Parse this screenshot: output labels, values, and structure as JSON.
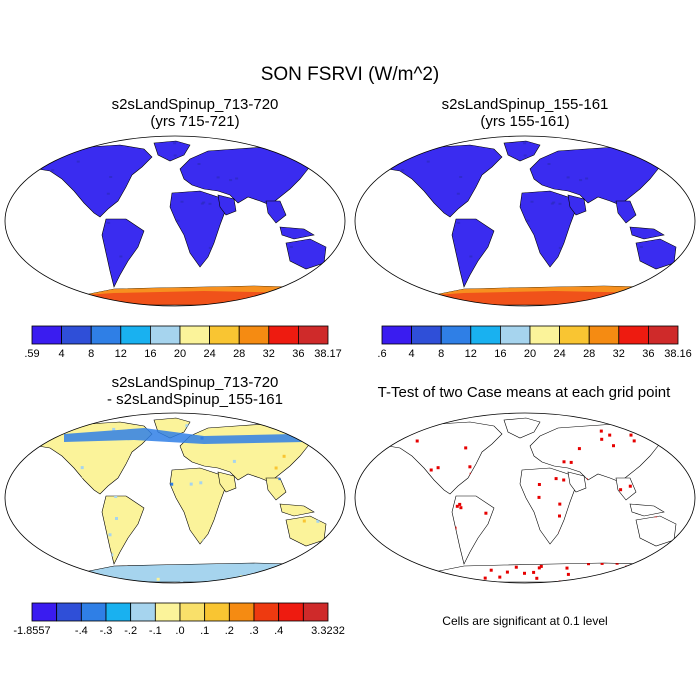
{
  "figure": {
    "title": "SON FSRVI (W/m^2)"
  },
  "panels": [
    {
      "id": "case1",
      "title_line1": "s2sLandSpinup_713-720",
      "title_line2": "(yrs 715-721)",
      "colorbar": {
        "colors": [
          "#3a1cf0",
          "#2f4fd8",
          "#2f7fe6",
          "#19b1f0",
          "#a6d4ee",
          "#fbf39a",
          "#f9c532",
          "#f58b12",
          "#ee1b10",
          "#cf2a2a"
        ],
        "labels": [
          ".59",
          "4",
          "8",
          "12",
          "16",
          "20",
          "24",
          "28",
          "32",
          "36",
          "38.17"
        ]
      }
    },
    {
      "id": "case2",
      "title_line1": "s2sLandSpinup_155-161",
      "title_line2": "(yrs 155-161)",
      "colorbar": {
        "colors": [
          "#3a1cf0",
          "#2f4fd8",
          "#2f7fe6",
          "#19b1f0",
          "#a6d4ee",
          "#fbf39a",
          "#f9c532",
          "#f58b12",
          "#ee1b10",
          "#cf2a2a"
        ],
        "labels": [
          ".6",
          "4",
          "8",
          "12",
          "16",
          "20",
          "24",
          "28",
          "32",
          "36",
          "38.16"
        ]
      }
    },
    {
      "id": "difference",
      "title_line1": "s2sLandSpinup_713-720",
      "title_line2": "- s2sLandSpinup_155-161",
      "colorbar": {
        "colors": [
          "#3a1cf0",
          "#2f4fd8",
          "#2f7fe6",
          "#19b1f0",
          "#a6d4ee",
          "#fbf39a",
          "#f9e06a",
          "#f9c532",
          "#f58b12",
          "#ee3a10",
          "#ee1b10",
          "#cf2a2a"
        ],
        "labels": [
          "-1.8557",
          "",
          "-.4",
          "-.3",
          "-.2",
          "-.1",
          ".0",
          ".1",
          ".2",
          ".3",
          ".4",
          "",
          "3.3232"
        ]
      }
    },
    {
      "id": "ttest",
      "title_line1": "T-Test of two Case means at each grid point",
      "note": "Cells are significant at 0.1 level"
    }
  ],
  "colors": {
    "land_case": "#3a2cf0",
    "land_case_dark": "#2a2ab8",
    "antarctica_case": "#f0521a",
    "antarctica_case_edge": "#f9a020",
    "land_diff": "#fbf39a",
    "land_diff_alt": "#a6d4ee",
    "diff_cold": "#2f7fe6",
    "significant": "#e60000"
  }
}
